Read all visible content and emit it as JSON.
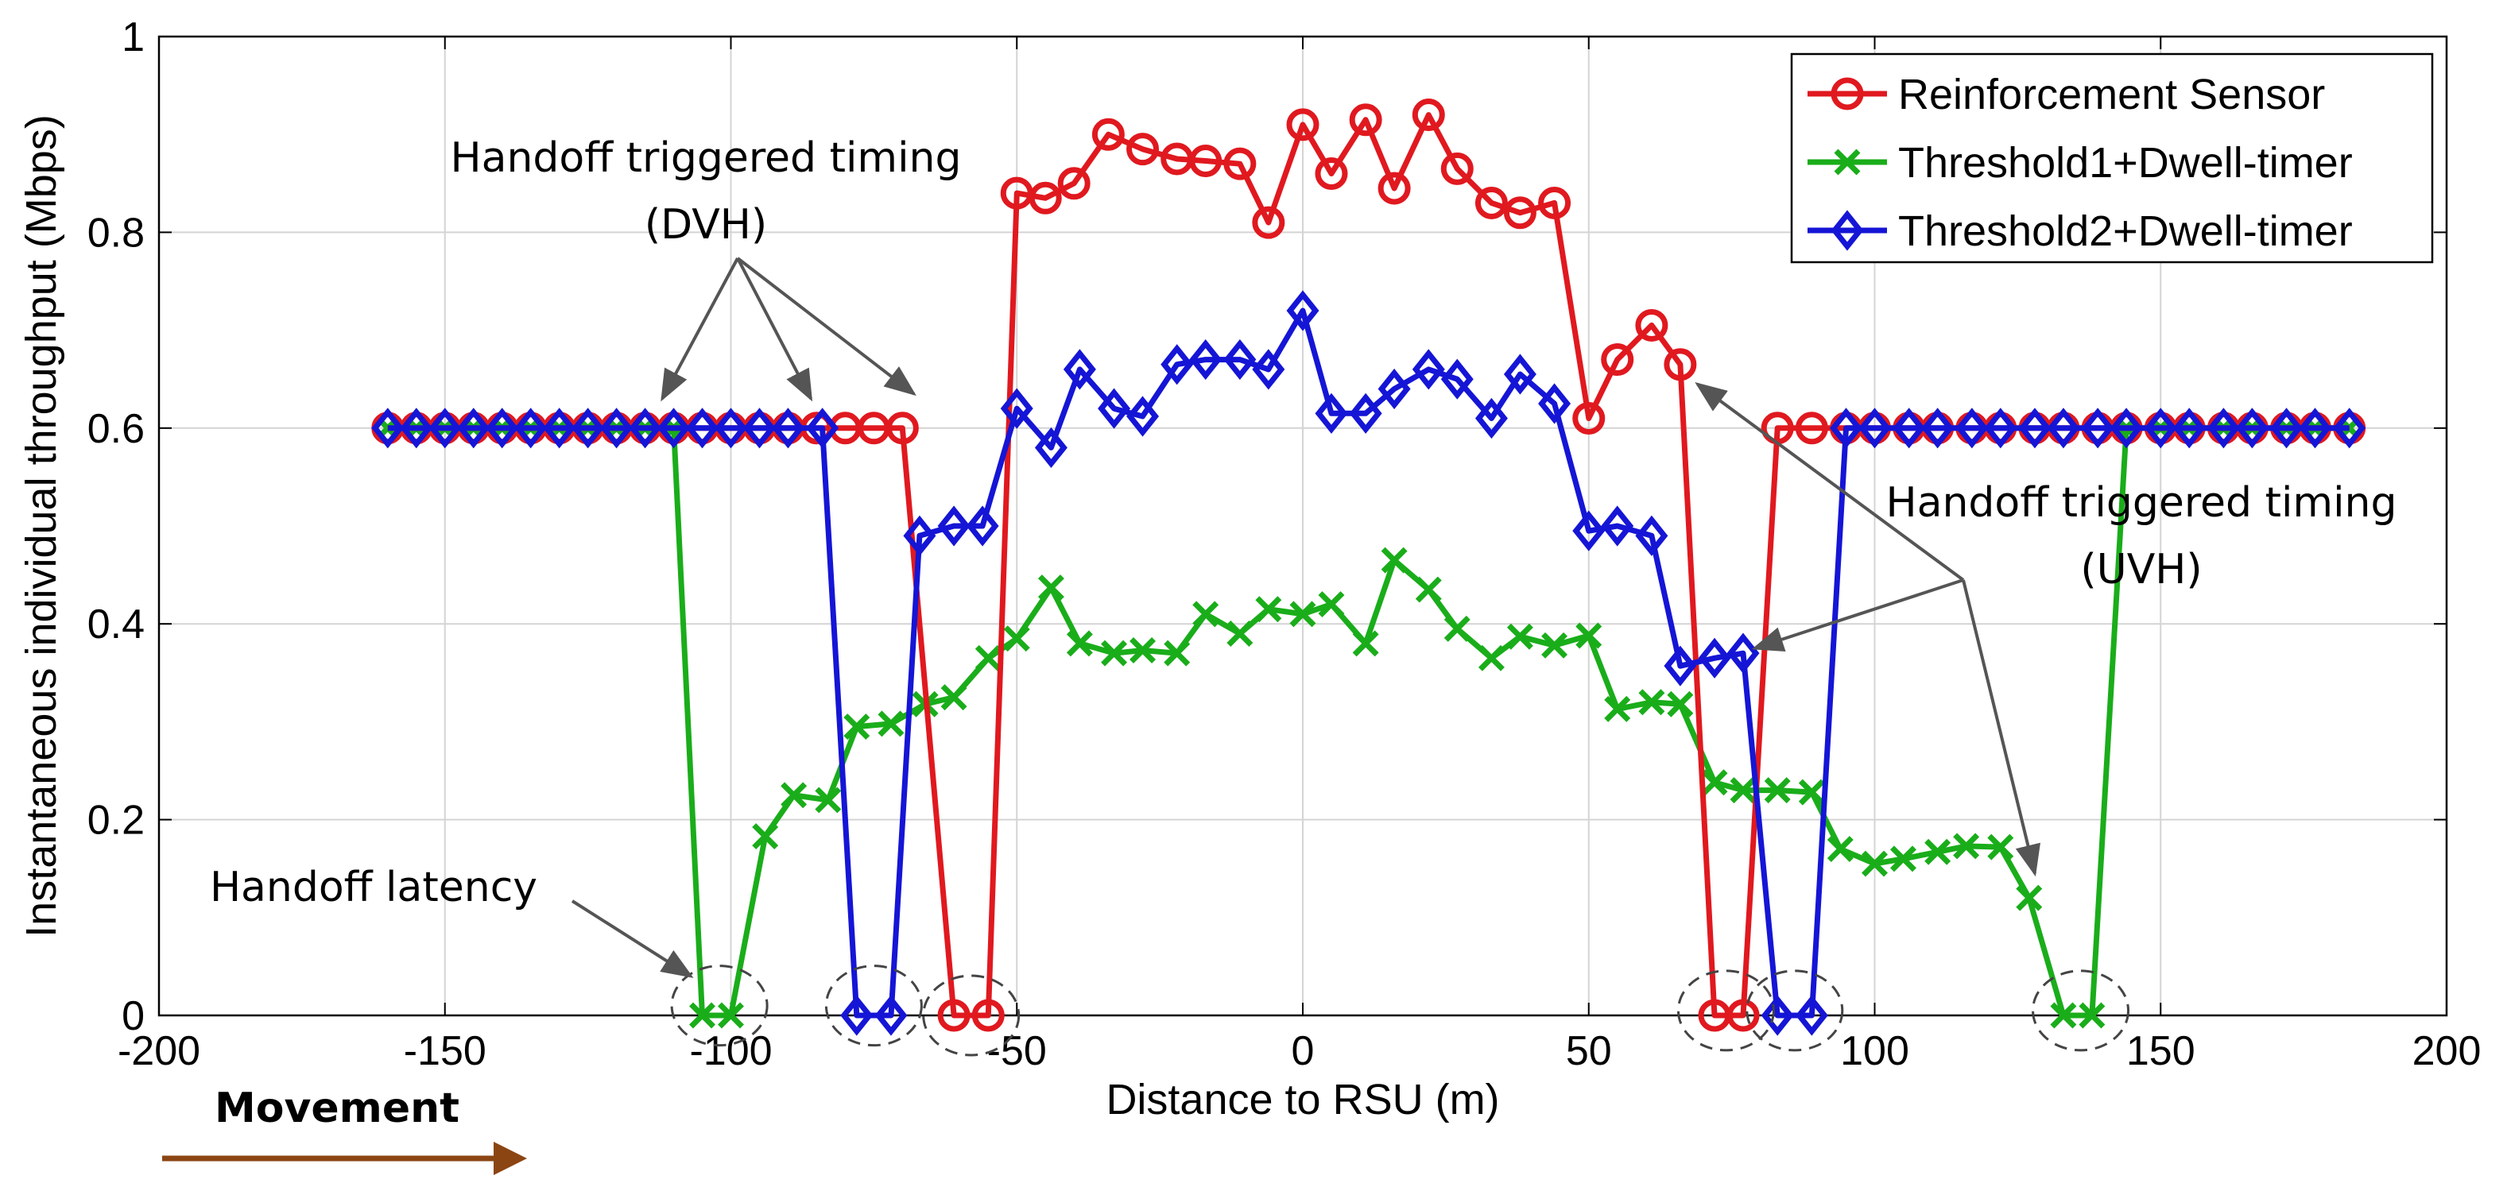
{
  "chart_data": {
    "type": "line",
    "title": "",
    "xlabel": "Distance to RSU (m)",
    "ylabel": "Instantaneous individual throughput (Mbps)",
    "xlim": [
      -200,
      200
    ],
    "ylim": [
      0,
      1
    ],
    "grid": true,
    "legend_position": "top-right",
    "xticks": [
      -200,
      -150,
      -100,
      -50,
      0,
      50,
      100,
      150,
      200
    ],
    "xtick_labels": [
      "-200",
      "-150",
      "-100",
      "-50",
      "0",
      "50",
      "100",
      "150",
      "200"
    ],
    "yticks": [
      0,
      0.2,
      0.4,
      0.6,
      0.8,
      1
    ],
    "ytick_labels": [
      "0",
      "0.2",
      "0.4",
      "0.6",
      "0.8",
      "1"
    ],
    "series": [
      {
        "name": "Reinforcement Sensor",
        "color": "#e0191f",
        "marker": "circle",
        "points": [
          [
            -160,
            0.6
          ],
          [
            -155,
            0.6
          ],
          [
            -150,
            0.6
          ],
          [
            -145,
            0.6
          ],
          [
            -140,
            0.6
          ],
          [
            -135,
            0.6
          ],
          [
            -130,
            0.6
          ],
          [
            -125,
            0.6
          ],
          [
            -120,
            0.6
          ],
          [
            -115,
            0.6
          ],
          [
            -110,
            0.6
          ],
          [
            -105,
            0.6
          ],
          [
            -100,
            0.6
          ],
          [
            -95,
            0.6
          ],
          [
            -90,
            0.6
          ],
          [
            -85,
            0.6
          ],
          [
            -80,
            0.6
          ],
          [
            -75,
            0.6
          ],
          [
            -70,
            0.6
          ],
          [
            -61,
            0.0
          ],
          [
            -55,
            0.0
          ],
          [
            -50,
            0.84
          ],
          [
            -45,
            0.835
          ],
          [
            -40,
            0.85
          ],
          [
            -34,
            0.9
          ],
          [
            -28,
            0.885
          ],
          [
            -22,
            0.875
          ],
          [
            -17,
            0.873
          ],
          [
            -11,
            0.87
          ],
          [
            -6,
            0.81
          ],
          [
            0,
            0.91
          ],
          [
            5,
            0.86
          ],
          [
            11,
            0.915
          ],
          [
            16,
            0.845
          ],
          [
            22,
            0.92
          ],
          [
            27,
            0.865
          ],
          [
            33,
            0.83
          ],
          [
            38,
            0.82
          ],
          [
            44,
            0.83
          ],
          [
            50,
            0.61
          ],
          [
            55,
            0.67
          ],
          [
            61,
            0.705
          ],
          [
            66,
            0.665
          ],
          [
            72,
            0.0
          ],
          [
            77,
            0.0
          ],
          [
            83,
            0.6
          ],
          [
            89,
            0.6
          ],
          [
            95,
            0.6
          ],
          [
            100,
            0.6
          ],
          [
            106,
            0.6
          ],
          [
            111,
            0.6
          ],
          [
            117,
            0.6
          ],
          [
            122,
            0.6
          ],
          [
            128,
            0.6
          ],
          [
            133,
            0.6
          ],
          [
            139,
            0.6
          ],
          [
            144,
            0.6
          ],
          [
            150,
            0.6
          ],
          [
            155,
            0.6
          ],
          [
            161,
            0.6
          ],
          [
            166,
            0.6
          ],
          [
            172,
            0.6
          ],
          [
            177,
            0.6
          ],
          [
            183,
            0.6
          ]
        ]
      },
      {
        "name": "Threshold1+Dwell-timer",
        "color": "#1aad1a",
        "marker": "x",
        "points": [
          [
            -160,
            0.6
          ],
          [
            -155,
            0.6
          ],
          [
            -150,
            0.6
          ],
          [
            -145,
            0.6
          ],
          [
            -140,
            0.6
          ],
          [
            -135,
            0.6
          ],
          [
            -130,
            0.6
          ],
          [
            -125,
            0.6
          ],
          [
            -120,
            0.6
          ],
          [
            -115,
            0.6
          ],
          [
            -110,
            0.6
          ],
          [
            -105,
            0.0
          ],
          [
            -100,
            0.0
          ],
          [
            -94,
            0.183
          ],
          [
            -89,
            0.225
          ],
          [
            -83,
            0.22
          ],
          [
            -78,
            0.295
          ],
          [
            -72,
            0.298
          ],
          [
            -66,
            0.318
          ],
          [
            -61,
            0.325
          ],
          [
            -55,
            0.365
          ],
          [
            -50,
            0.385
          ],
          [
            -44,
            0.437
          ],
          [
            -39,
            0.38
          ],
          [
            -33,
            0.37
          ],
          [
            -28,
            0.373
          ],
          [
            -22,
            0.37
          ],
          [
            -17,
            0.41
          ],
          [
            -11,
            0.39
          ],
          [
            -6,
            0.415
          ],
          [
            0,
            0.41
          ],
          [
            5,
            0.42
          ],
          [
            11,
            0.38
          ],
          [
            16,
            0.465
          ],
          [
            22,
            0.435
          ],
          [
            27,
            0.395
          ],
          [
            33,
            0.365
          ],
          [
            38,
            0.387
          ],
          [
            44,
            0.378
          ],
          [
            50,
            0.388
          ],
          [
            55,
            0.313
          ],
          [
            61,
            0.32
          ],
          [
            66,
            0.318
          ],
          [
            72,
            0.238
          ],
          [
            77,
            0.23
          ],
          [
            83,
            0.23
          ],
          [
            89,
            0.228
          ],
          [
            94,
            0.17
          ],
          [
            100,
            0.155
          ],
          [
            105,
            0.16
          ],
          [
            111,
            0.167
          ],
          [
            116,
            0.173
          ],
          [
            122,
            0.172
          ],
          [
            127,
            0.12
          ],
          [
            133,
            0.0
          ],
          [
            138,
            0.0
          ],
          [
            144,
            0.6
          ],
          [
            150,
            0.6
          ],
          [
            155,
            0.6
          ],
          [
            161,
            0.6
          ],
          [
            166,
            0.6
          ],
          [
            172,
            0.6
          ],
          [
            177,
            0.6
          ],
          [
            183,
            0.6
          ]
        ]
      },
      {
        "name": "Threshold2+Dwell-timer",
        "color": "#1515d6",
        "marker": "diamond",
        "points": [
          [
            -160,
            0.6
          ],
          [
            -155,
            0.6
          ],
          [
            -150,
            0.6
          ],
          [
            -145,
            0.6
          ],
          [
            -140,
            0.6
          ],
          [
            -135,
            0.6
          ],
          [
            -130,
            0.6
          ],
          [
            -125,
            0.6
          ],
          [
            -120,
            0.6
          ],
          [
            -115,
            0.6
          ],
          [
            -110,
            0.6
          ],
          [
            -105,
            0.6
          ],
          [
            -100,
            0.6
          ],
          [
            -95,
            0.6
          ],
          [
            -90,
            0.6
          ],
          [
            -84,
            0.6
          ],
          [
            -78,
            0.0
          ],
          [
            -72,
            0.0
          ],
          [
            -67,
            0.49
          ],
          [
            -61,
            0.5
          ],
          [
            -56,
            0.5
          ],
          [
            -50,
            0.62
          ],
          [
            -44,
            0.58
          ],
          [
            -39,
            0.66
          ],
          [
            -33,
            0.62
          ],
          [
            -28,
            0.612
          ],
          [
            -22,
            0.665
          ],
          [
            -17,
            0.67
          ],
          [
            -11,
            0.67
          ],
          [
            -6,
            0.66
          ],
          [
            0,
            0.72
          ],
          [
            5,
            0.615
          ],
          [
            11,
            0.615
          ],
          [
            16,
            0.64
          ],
          [
            22,
            0.66
          ],
          [
            27,
            0.65
          ],
          [
            33,
            0.61
          ],
          [
            38,
            0.655
          ],
          [
            44,
            0.625
          ],
          [
            50,
            0.495
          ],
          [
            55,
            0.5
          ],
          [
            61,
            0.49
          ],
          [
            66,
            0.357
          ],
          [
            72,
            0.365
          ],
          [
            77,
            0.37
          ],
          [
            83,
            0.0
          ],
          [
            89,
            0.0
          ],
          [
            95,
            0.6
          ],
          [
            100,
            0.6
          ],
          [
            106,
            0.6
          ],
          [
            111,
            0.6
          ],
          [
            117,
            0.6
          ],
          [
            122,
            0.6
          ],
          [
            128,
            0.6
          ],
          [
            133,
            0.6
          ],
          [
            139,
            0.6
          ],
          [
            144,
            0.6
          ],
          [
            150,
            0.6
          ],
          [
            155,
            0.6
          ],
          [
            161,
            0.6
          ],
          [
            166,
            0.6
          ],
          [
            172,
            0.6
          ],
          [
            177,
            0.6
          ],
          [
            183,
            0.6
          ]
        ]
      }
    ],
    "annotations": [
      {
        "text_lines": [
          "Handoff triggered timing",
          "(DVH)"
        ],
        "arrow_targets": [
          [
            -112,
            0.63
          ],
          [
            -86,
            0.63
          ],
          [
            -68,
            0.635
          ]
        ]
      },
      {
        "text_lines": [
          "Handoff triggered timing",
          "(UVH)"
        ],
        "arrow_targets": [
          [
            69,
            0.645
          ],
          [
            79,
            0.375
          ],
          [
            128,
            0.145
          ]
        ]
      },
      {
        "text_lines": [
          "Handoff latency"
        ],
        "arrow_targets": [
          [
            -107,
            0.04
          ]
        ]
      }
    ],
    "latency_circles": [
      [
        -102,
        0.01
      ],
      [
        -75,
        0.01
      ],
      [
        -58,
        0.0
      ],
      [
        74,
        0.005
      ],
      [
        86,
        0.005
      ],
      [
        136,
        0.005
      ]
    ]
  },
  "movement_label": "Movement"
}
